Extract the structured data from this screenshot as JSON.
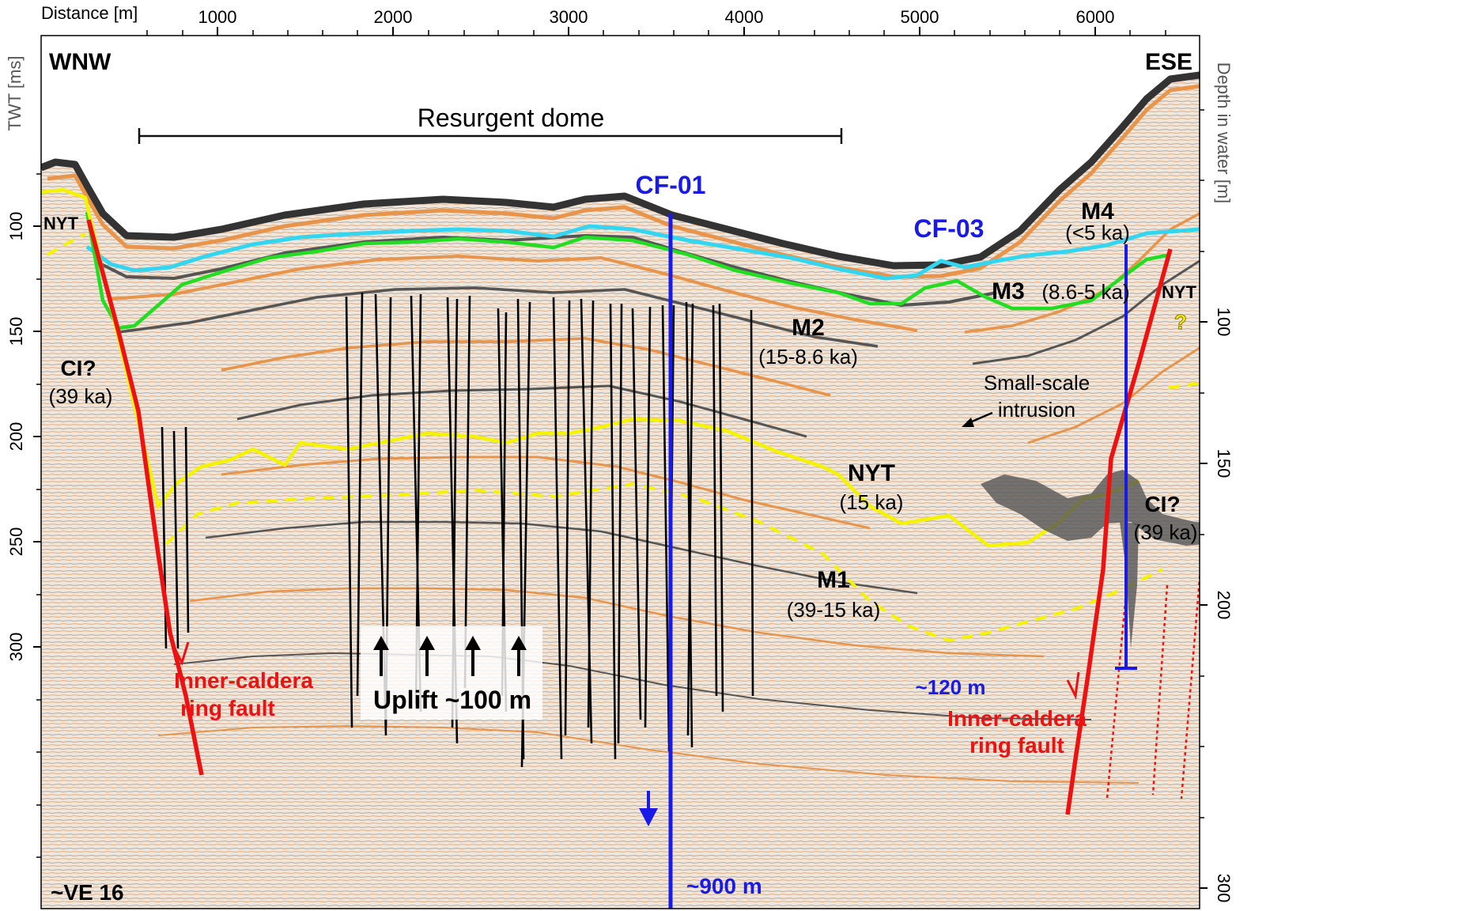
{
  "axes": {
    "top_title": "Distance [m]",
    "top_ticks": [
      "1000",
      "2000",
      "3000",
      "4000",
      "5000",
      "6000"
    ],
    "left_title": "TWT [ms]",
    "left_ticks": [
      "100",
      "150",
      "200",
      "250",
      "300"
    ],
    "right_title": "Depth in water [m]",
    "right_ticks": [
      "100",
      "150",
      "200",
      "300"
    ]
  },
  "orientation": {
    "left": "WNW",
    "right": "ESE"
  },
  "vertical_exaggeration": "~VE 16",
  "feature_labels": {
    "resurgent_dome": "Resurgent dome",
    "uplift": "Uplift ~100 m",
    "intrusion_line1": "Small-scale",
    "intrusion_line2": "intrusion",
    "fault_left_line1": "Inner-caldera",
    "fault_left_line2": "ring fault",
    "fault_right_line1": "Inner-caldera",
    "fault_right_line2": "ring fault",
    "question_mark": "?"
  },
  "units": {
    "nyt_left": "NYT",
    "nyt_right": "NYT",
    "nyt_center": "NYT",
    "nyt_center_age": "(15 ka)",
    "ci_left": "CI?",
    "ci_left_age": "(39 ka)",
    "ci_right": "CI?",
    "ci_right_age": "(39 ka)",
    "m1": "M1",
    "m1_age": "(39-15 ka)",
    "m2": "M2",
    "m2_age": "(15-8.6 ka)",
    "m3": "M3",
    "m3_age": "(8.6-5 ka)",
    "m4": "M4",
    "m4_age": "(<5 ka)"
  },
  "boreholes": {
    "cf01": "CF-01",
    "cf01_depth": "~900 m",
    "cf03": "CF-03",
    "cf03_depth": "~120 m"
  },
  "colors": {
    "m4_base": "#33d6f0",
    "m3_base": "#22dd22",
    "nyt_horizon": "#f4f400",
    "ring_fault": "#ee1111",
    "borehole": "#1a1ae6",
    "dome_faults": "#000000",
    "intrusion": "#555555"
  }
}
